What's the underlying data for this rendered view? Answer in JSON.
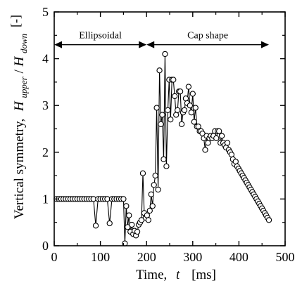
{
  "chart_data": {
    "type": "line",
    "xlabel": {
      "prefix": "Time,",
      "var": "t",
      "unit": "[ms]"
    },
    "ylabel": {
      "prefix": "Vertical symmetry,",
      "var1": "H",
      "sub1": "upper",
      "sep": "/",
      "var2": "H",
      "sub2": "down"
    },
    "y_unit": "[-]",
    "xlim": [
      0,
      500
    ],
    "ylim": [
      0,
      5
    ],
    "x_ticks": [
      "0",
      "100",
      "200",
      "300",
      "400",
      "500"
    ],
    "y_ticks": [
      "0",
      "1",
      "2",
      "3",
      "4",
      "5"
    ],
    "grid": false,
    "annotations": [
      {
        "text": "Ellipsoidal",
        "x_from": 0,
        "x_to": 200,
        "y": 4.3
      },
      {
        "text": "Cap shape",
        "x_from": 200,
        "x_to": 465,
        "y": 4.3
      }
    ],
    "marker": "open-circle",
    "series": [
      {
        "x": [
          5,
          10,
          15,
          20,
          25,
          30,
          35,
          40,
          45,
          50,
          55,
          60,
          65,
          70,
          75,
          80,
          85,
          90,
          95,
          100,
          105,
          110,
          115,
          120,
          125,
          130,
          135,
          140,
          145,
          150,
          153,
          156,
          159,
          162,
          165,
          168,
          171,
          174,
          177,
          180,
          183,
          186,
          189,
          192,
          195,
          198,
          201,
          204,
          207,
          210,
          213,
          216,
          219,
          222,
          225,
          228,
          231,
          234,
          237,
          240,
          243,
          246,
          249,
          252,
          255,
          258,
          261,
          264,
          267,
          270,
          273,
          276,
          279,
          282,
          285,
          288,
          291,
          294,
          297,
          300,
          303,
          306,
          309,
          312,
          315,
          318,
          321,
          324,
          327,
          330,
          333,
          336,
          339,
          342,
          345,
          348,
          351,
          354,
          357,
          360,
          363,
          366,
          369,
          372,
          375,
          378,
          381,
          384,
          387,
          390,
          393,
          396,
          399,
          402,
          405,
          408,
          411,
          414,
          417,
          420,
          423,
          426,
          429,
          432,
          435,
          438,
          441,
          444,
          447,
          450,
          453,
          456,
          459,
          462,
          465
        ],
        "y": [
          1,
          1,
          1,
          1,
          1,
          1,
          1,
          1,
          1,
          1,
          1,
          1,
          1,
          1,
          1,
          1,
          1,
          0.43,
          1,
          1,
          1,
          1,
          1,
          0.48,
          1,
          1,
          1,
          1,
          1,
          1,
          0.05,
          0.85,
          0.4,
          0.65,
          0.3,
          0.45,
          0.25,
          0.32,
          0.22,
          0.3,
          0.45,
          0.5,
          0.55,
          1.55,
          0.7,
          0.6,
          0.65,
          0.55,
          0.75,
          1.1,
          0.85,
          1.3,
          1.5,
          2.95,
          1.2,
          3.75,
          2.6,
          2.8,
          1.85,
          4.1,
          1.7,
          2.9,
          3.55,
          2.7,
          3.55,
          3.55,
          3.2,
          2.8,
          2.9,
          3.3,
          3.3,
          2.6,
          2.85,
          2.9,
          3.15,
          3.05,
          3.4,
          3.0,
          2.85,
          3.25,
          2.65,
          2.95,
          2.55,
          2.55,
          2.45,
          2.45,
          2.4,
          2.3,
          2.05,
          2.35,
          2.2,
          2.3,
          2.35,
          2.3,
          2.35,
          2.45,
          2.3,
          2.45,
          2.45,
          2.2,
          2.35,
          2.2,
          2.15,
          2.1,
          2.2,
          2.05,
          2.0,
          1.95,
          1.85,
          1.75,
          1.8,
          1.7,
          1.65,
          1.6,
          1.55,
          1.5,
          1.45,
          1.4,
          1.35,
          1.3,
          1.25,
          1.2,
          1.15,
          1.1,
          1.05,
          1.0,
          0.95,
          0.9,
          0.85,
          0.8,
          0.75,
          0.7,
          0.65,
          0.6,
          0.55
        ]
      }
    ]
  }
}
